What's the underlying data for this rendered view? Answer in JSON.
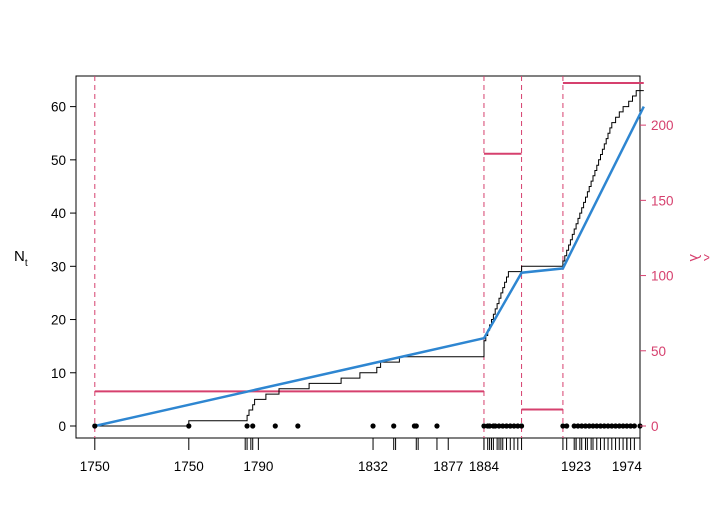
{
  "chart_data": {
    "type": "line",
    "title": "",
    "xlabel": "",
    "ylabel": "N",
    "ylabel_sub": "t",
    "y2label": "λ",
    "y2label_accent": "^",
    "xlim": [
      1700,
      2000
    ],
    "ylim": [
      0,
      60
    ],
    "y2lim": [
      0,
      220
    ],
    "y_ticks": [
      0,
      10,
      20,
      30,
      40,
      50,
      60
    ],
    "y2_ticks": [
      0,
      50,
      100,
      150,
      200
    ],
    "x_tick_labels": [
      {
        "pos": 1710,
        "label": "1750"
      },
      {
        "pos": 1760,
        "label": "1750"
      },
      {
        "pos": 1797,
        "label": "1790"
      },
      {
        "pos": 1858,
        "label": "1832"
      },
      {
        "pos": 1898,
        "label": "1877"
      },
      {
        "pos": 1917,
        "label": "1884"
      },
      {
        "pos": 1966,
        "label": "1923"
      },
      {
        "pos": 1993,
        "label": "1974"
      }
    ],
    "changepoints": [
      1710,
      1917,
      1937,
      1959
    ],
    "end_year": 2002,
    "series": [
      {
        "kind": "step",
        "color": "#000000",
        "x": [
          1710,
          1760,
          1791,
          1792,
          1794,
          1795,
          1801,
          1808,
          1824,
          1841,
          1851,
          1860,
          1862,
          1872,
          1917,
          1918,
          1919,
          1920,
          1921,
          1922,
          1923,
          1924,
          1925,
          1926,
          1927,
          1928,
          1929,
          1930,
          1931,
          1932,
          1934,
          1935,
          1937,
          1959,
          1960,
          1961,
          1962,
          1963,
          1964,
          1965,
          1966,
          1967,
          1968,
          1969,
          1970,
          1971,
          1972,
          1973,
          1974,
          1975,
          1976,
          1977,
          1978,
          1979,
          1980,
          1981,
          1982,
          1983,
          1984,
          1985,
          1986,
          1987,
          1988,
          1989,
          1990,
          1991,
          1992,
          1993,
          1994,
          1995,
          1996,
          1997,
          1998,
          1999,
          2000,
          2001
        ],
        "y": [
          0,
          1,
          2,
          3,
          4,
          5,
          6,
          7,
          8,
          9,
          10,
          11,
          12,
          13,
          16,
          17,
          18,
          19,
          20,
          21,
          22,
          23,
          24,
          25,
          26,
          27,
          28,
          29,
          29,
          29,
          29,
          29,
          30,
          31,
          32,
          33,
          34,
          35,
          36,
          37,
          38,
          39,
          40,
          41,
          42,
          43,
          44,
          45,
          46,
          47,
          48,
          49,
          50,
          51,
          52,
          53,
          54,
          55,
          56,
          57,
          57,
          58,
          58,
          59,
          59,
          60,
          60,
          60,
          61,
          61,
          62,
          62,
          63,
          63,
          63,
          63
        ]
      },
      {
        "kind": "line",
        "color": "#2E86D1",
        "x": [
          1710,
          1917,
          1937,
          1959,
          2002
        ],
        "y": [
          0,
          16.5,
          28.8,
          29.6,
          60
        ]
      }
    ],
    "rate_segments": [
      {
        "x0": 1710,
        "x1": 1917,
        "lambda": 23
      },
      {
        "x0": 1917,
        "x1": 1937,
        "lambda": 181
      },
      {
        "x0": 1937,
        "x1": 1959,
        "lambda": 11
      },
      {
        "x0": 1959,
        "x1": 2002,
        "lambda": 228
      }
    ],
    "event_points": [
      1710,
      1760,
      1791,
      1794,
      1806,
      1818,
      1858,
      1869,
      1880,
      1881,
      1892,
      1917,
      1919,
      1920,
      1922,
      1923,
      1925,
      1927,
      1929,
      1931,
      1933,
      1935,
      1937,
      1959,
      1961,
      1965,
      1967,
      1969,
      1971,
      1973,
      1975,
      1977,
      1979,
      1981,
      1983,
      1985,
      1987,
      1989,
      1991,
      1993,
      1995,
      1997,
      2000
    ],
    "rug_x": [
      1790,
      1791,
      1793,
      1794,
      1869,
      1870,
      1881,
      1882,
      1892,
      1917,
      1919,
      1920,
      1921,
      1922,
      1924,
      1925,
      1926,
      1927,
      1929,
      1931,
      1933,
      1935,
      1937,
      1959,
      1961,
      1965,
      1966,
      1968,
      1969,
      1971,
      1972,
      1974,
      1975,
      1977,
      1979,
      1981,
      1983,
      1985,
      1987,
      1989,
      1991,
      1993,
      1995,
      1997,
      2000
    ],
    "colors": {
      "step": "#000000",
      "fit": "#2E86D1",
      "rate": "#D6406E",
      "changepoint": "#D6406E"
    },
    "grid": false,
    "legend": "none"
  }
}
